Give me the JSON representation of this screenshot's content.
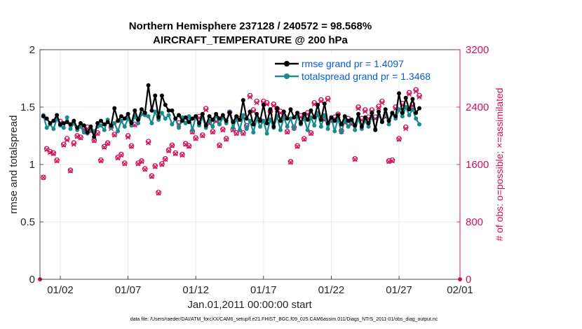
{
  "chart_data": {
    "type": "line",
    "title": "Northern Hemisphere 237128 / 240572 = 98.568%",
    "subtitle": "AIRCRAFT_TEMPERATURE @ 200 hPa",
    "xlabel": "Jan.01,2011 00:00:00 start",
    "ylabel": "rmse and totalspread",
    "y2label": "# of obs: o=possible; ×=assimilated",
    "footnote": "data file: /Users/raeder/DAI/ATM_forcXX/CAM6_setup/f.e21.FHIST_BGC.f09_025.CAM6assim.011/Diags_NTrS_2011-01/obs_diag_output.nc",
    "x_range": [
      0.5,
      31.5
    ],
    "ylim": [
      0,
      2
    ],
    "y2lim": [
      0,
      3200
    ],
    "x_ticks": [
      {
        "x": 2,
        "label": "01/02"
      },
      {
        "x": 7,
        "label": "01/07"
      },
      {
        "x": 12,
        "label": "01/12"
      },
      {
        "x": 17,
        "label": "01/17"
      },
      {
        "x": 22,
        "label": "01/22"
      },
      {
        "x": 27,
        "label": "01/27"
      },
      {
        "x": 32,
        "label": "02/01"
      }
    ],
    "y_ticks": [
      {
        "value": 0,
        "label": "0"
      },
      {
        "value": 0.5,
        "label": "0.5"
      },
      {
        "value": 1,
        "label": "1"
      },
      {
        "value": 1.5,
        "label": "1.5"
      },
      {
        "value": 2,
        "label": "2"
      }
    ],
    "y2_ticks": [
      {
        "value": 0,
        "label": "0"
      },
      {
        "value": 800,
        "label": "800"
      },
      {
        "value": 1600,
        "label": "1600"
      },
      {
        "value": 2400,
        "label": "2400"
      },
      {
        "value": 3200,
        "label": "3200"
      }
    ],
    "grid": true,
    "legend_position": "top-right",
    "x_start": 0.75,
    "x_step": 0.25,
    "series": [
      {
        "name": "rmse grand pr = 1.4097",
        "color": "#000000",
        "axis": "left",
        "values": [
          1.42,
          1.4,
          1.36,
          1.38,
          1.43,
          1.35,
          1.36,
          1.37,
          1.35,
          1.38,
          1.32,
          1.36,
          1.34,
          1.28,
          1.33,
          1.24,
          1.36,
          1.38,
          1.35,
          1.37,
          1.34,
          1.49,
          1.38,
          1.42,
          1.4,
          1.44,
          1.36,
          1.47,
          1.39,
          1.48,
          1.45,
          1.69,
          1.47,
          1.6,
          1.41,
          1.6,
          1.52,
          1.47,
          1.47,
          1.4,
          1.43,
          1.38,
          1.41,
          1.37,
          1.4,
          1.42,
          1.36,
          1.44,
          1.34,
          1.42,
          1.39,
          1.44,
          1.4,
          1.43,
          1.38,
          1.45,
          1.37,
          1.42,
          1.39,
          1.56,
          1.4,
          1.46,
          1.35,
          1.44,
          1.38,
          1.52,
          1.36,
          1.48,
          1.33,
          1.49,
          1.38,
          1.46,
          1.4,
          1.48,
          1.41,
          1.45,
          1.36,
          1.44,
          1.39,
          1.47,
          1.41,
          1.52,
          1.39,
          1.53,
          1.36,
          1.41,
          1.38,
          1.43,
          1.35,
          1.42,
          1.38,
          1.39,
          1.34,
          1.44,
          1.33,
          1.41,
          1.36,
          1.45,
          1.3,
          1.46,
          1.37,
          1.48,
          1.38,
          1.45,
          1.42,
          1.62,
          1.45,
          1.58,
          1.48,
          1.57,
          1.45,
          1.49
        ]
      },
      {
        "name": "totalspread grand pr = 1.3468",
        "color": "#1a8a8a",
        "axis": "left",
        "values": [
          1.43,
          1.32,
          1.35,
          1.31,
          1.4,
          1.34,
          1.32,
          1.41,
          1.31,
          1.36,
          1.3,
          1.33,
          1.28,
          1.27,
          1.31,
          1.29,
          1.33,
          1.34,
          1.3,
          1.39,
          1.32,
          1.36,
          1.29,
          1.38,
          1.33,
          1.4,
          1.34,
          1.42,
          1.36,
          1.44,
          1.43,
          1.42,
          1.36,
          1.46,
          1.39,
          1.45,
          1.4,
          1.43,
          1.35,
          1.4,
          1.32,
          1.41,
          1.36,
          1.42,
          1.3,
          1.42,
          1.34,
          1.41,
          1.32,
          1.38,
          1.33,
          1.43,
          1.35,
          1.41,
          1.36,
          1.46,
          1.32,
          1.4,
          1.3,
          1.43,
          1.31,
          1.38,
          1.28,
          1.4,
          1.33,
          1.38,
          1.27,
          1.39,
          1.32,
          1.42,
          1.3,
          1.41,
          1.33,
          1.4,
          1.31,
          1.42,
          1.35,
          1.4,
          1.3,
          1.41,
          1.34,
          1.45,
          1.33,
          1.43,
          1.31,
          1.41,
          1.29,
          1.4,
          1.28,
          1.39,
          1.33,
          1.38,
          1.3,
          1.4,
          1.31,
          1.38,
          1.33,
          1.42,
          1.31,
          1.43,
          1.38,
          1.45,
          1.35,
          1.44,
          1.4,
          1.48,
          1.42,
          1.5,
          1.43,
          1.48,
          1.4,
          1.35
        ]
      },
      {
        "name": "obs possible",
        "color": "#d0105e",
        "axis": "right",
        "marker": "o",
        "values": [
          1420,
          1820,
          1780,
          1760,
          1660,
          2200,
          1880,
          1960,
          1520,
          1900,
          2000,
          1980,
          2100,
          2120,
          2080,
          1940,
          2040,
          1660,
          1850,
          1900,
          2120,
          2020,
          1700,
          1740,
          1620,
          2000,
          1860,
          2160,
          1620,
          1650,
          1540,
          1920,
          1440,
          1580,
          1210,
          1610,
          1680,
          1800,
          1870,
          1760,
          2180,
          1740,
          1890,
          1860,
          2060,
          1970,
          2270,
          2010,
          2380,
          2190,
          2060,
          2220,
          1870,
          2090,
          1960,
          2330,
          2090,
          2040,
          2240,
          2040,
          2140,
          2560,
          2360,
          2480,
          2220,
          2480,
          2460,
          2340,
          2440,
          2380,
          2340,
          2260,
          2060,
          1640,
          2120,
          1860,
          2280,
          1960,
          2320,
          2040,
          2460,
          2300,
          2500,
          2240,
          2520,
          2220,
          2260,
          2300,
          2070,
          2200,
          2240,
          2180,
          1680,
          2400,
          2240,
          2360,
          2260,
          2360,
          2260,
          2410,
          2480,
          2280,
          1650,
          1660,
          2400,
          1960,
          2450,
          2120,
          2600,
          2440,
          2640,
          2560
        ]
      },
      {
        "name": "obs assimilated",
        "color": "#d0105e",
        "axis": "right",
        "marker": "x",
        "values": [
          1420,
          1810,
          1770,
          1750,
          1650,
          2180,
          1870,
          1940,
          1510,
          1880,
          1990,
          1970,
          2090,
          2100,
          2060,
          1930,
          2030,
          1650,
          1840,
          1890,
          2100,
          2010,
          1690,
          1730,
          1610,
          1980,
          1850,
          2150,
          1610,
          1640,
          1530,
          1900,
          1430,
          1570,
          1200,
          1600,
          1670,
          1790,
          1860,
          1750,
          2160,
          1730,
          1880,
          1850,
          2050,
          1960,
          2250,
          2000,
          2360,
          2170,
          2050,
          2200,
          1860,
          2080,
          1950,
          2310,
          2080,
          2030,
          2220,
          2030,
          2130,
          2540,
          2340,
          2460,
          2200,
          2460,
          2440,
          2320,
          2420,
          2360,
          2320,
          2240,
          2050,
          1630,
          2110,
          1850,
          2260,
          1950,
          2300,
          2030,
          2440,
          2280,
          2480,
          2220,
          2500,
          2200,
          2240,
          2280,
          2060,
          2180,
          2220,
          2160,
          1670,
          2380,
          2220,
          2340,
          2240,
          2340,
          2240,
          2390,
          2460,
          2260,
          1640,
          1650,
          2380,
          1950,
          2430,
          2100,
          2580,
          2420,
          2620,
          2540
        ]
      }
    ]
  }
}
